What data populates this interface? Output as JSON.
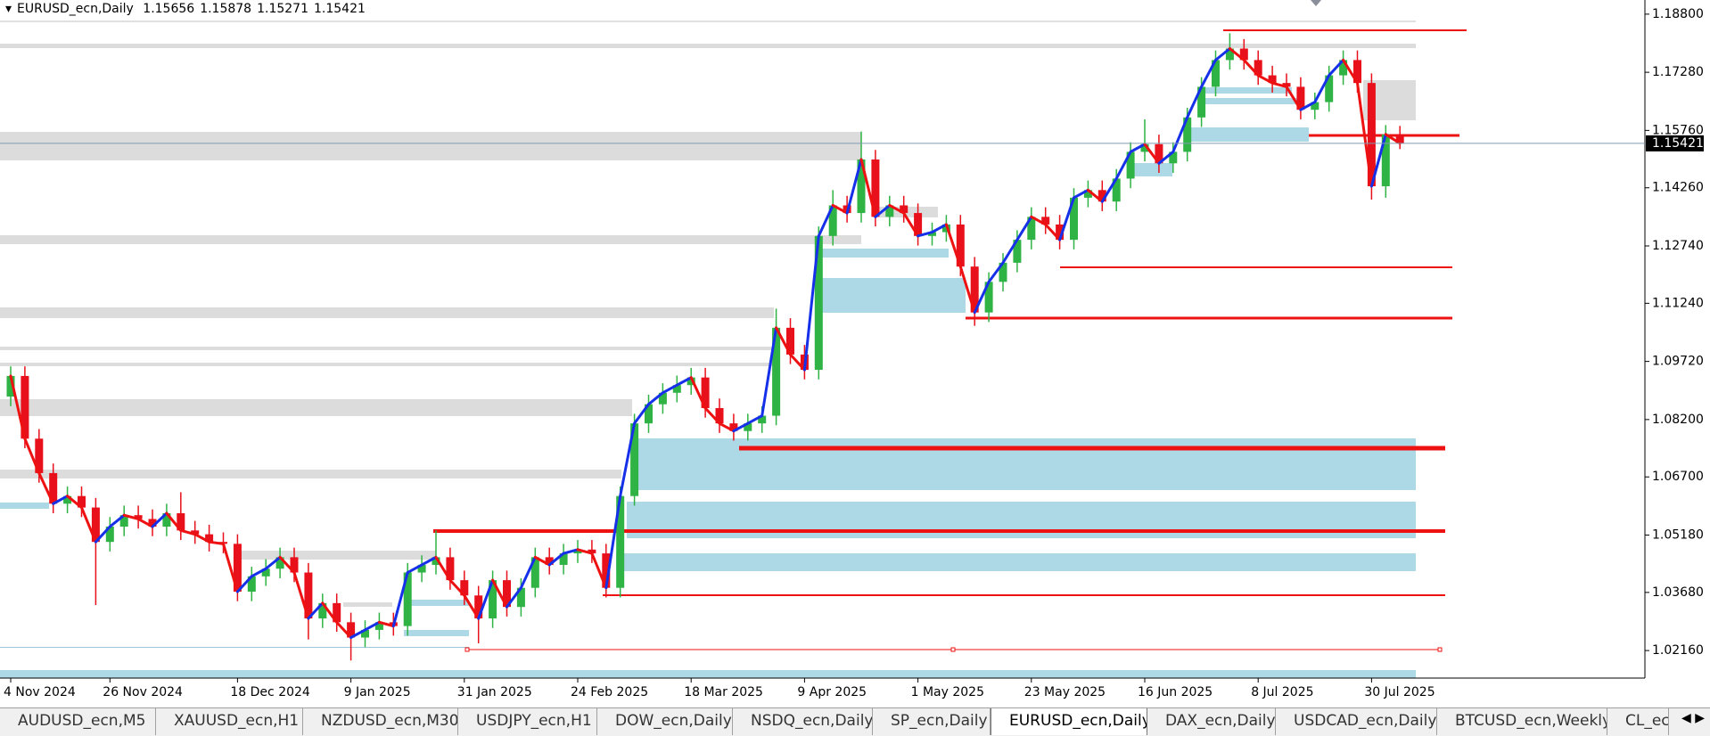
{
  "symbol": "EURUSD_ecn,Daily",
  "chart_data": {
    "type": "candlestick",
    "categories": [
      "4 Nov 2024",
      null,
      null,
      null,
      null,
      null,
      null,
      "26 Nov 2024",
      null,
      null,
      null,
      null,
      null,
      null,
      null,
      null,
      "18 Dec 2024",
      null,
      null,
      null,
      null,
      null,
      null,
      null,
      "9 Jan 2025",
      null,
      null,
      null,
      null,
      null,
      null,
      null,
      "31 Jan 2025",
      null,
      null,
      null,
      null,
      null,
      null,
      null,
      "24 Feb 2025",
      null,
      null,
      null,
      null,
      null,
      null,
      null,
      "18 Mar 2025",
      null,
      null,
      null,
      null,
      null,
      null,
      null,
      "9 Apr 2025",
      null,
      null,
      null,
      null,
      null,
      null,
      null,
      "1 May 2025",
      null,
      null,
      null,
      null,
      null,
      null,
      null,
      "23 May 2025",
      null,
      null,
      null,
      null,
      null,
      null,
      null,
      "16 Jun 2025",
      null,
      null,
      null,
      null,
      null,
      null,
      null,
      "8 Jul 2025",
      null,
      null,
      null,
      null,
      null,
      null,
      null,
      "30 Jul 2025",
      null,
      null
    ],
    "open": [
      1.088,
      1.0934,
      1.077,
      1.068,
      1.06,
      1.062,
      1.059,
      1.05,
      1.054,
      1.057,
      1.056,
      1.054,
      1.0575,
      1.053,
      1.052,
      1.05,
      1.0495,
      1.037,
      1.041,
      1.043,
      1.046,
      1.042,
      1.03,
      1.034,
      1.029,
      1.025,
      1.027,
      1.029,
      1.028,
      1.042,
      1.044,
      1.046,
      1.04,
      1.036,
      1.03,
      1.04,
      1.033,
      1.038,
      1.046,
      1.044,
      1.047,
      1.048,
      1.047,
      1.038,
      1.062,
      1.081,
      1.086,
      1.089,
      1.091,
      1.093,
      1.085,
      1.081,
      1.079,
      1.081,
      1.083,
      1.106,
      1.099,
      1.095,
      1.13,
      1.138,
      1.136,
      1.15,
      1.135,
      1.138,
      1.136,
      1.13,
      1.131,
      1.133,
      1.122,
      1.11,
      1.118,
      1.123,
      1.129,
      1.135,
      1.133,
      1.129,
      1.14,
      1.142,
      1.139,
      1.145,
      1.152,
      1.154,
      1.149,
      1.152,
      1.161,
      1.169,
      1.176,
      1.179,
      1.176,
      1.172,
      1.17,
      1.169,
      1.163,
      1.165,
      1.172,
      1.176,
      1.17,
      1.143,
      1.15656
    ],
    "high": [
      1.0959,
      1.0959,
      1.0795,
      1.0705,
      1.0645,
      1.0645,
      1.0615,
      1.0565,
      1.0595,
      1.0595,
      1.0585,
      1.06,
      1.063,
      1.0555,
      1.0545,
      1.0525,
      1.052,
      1.0435,
      1.0455,
      1.0485,
      1.0485,
      1.0445,
      1.0365,
      1.0365,
      1.0315,
      1.0295,
      1.0315,
      1.0315,
      1.0445,
      1.0465,
      1.053,
      1.0485,
      1.0425,
      1.0385,
      1.0425,
      1.0425,
      1.0405,
      1.0485,
      1.0485,
      1.0495,
      1.0505,
      1.0505,
      1.0495,
      1.0645,
      1.0835,
      1.0885,
      1.0915,
      1.0935,
      1.0955,
      1.0955,
      1.0875,
      1.0835,
      1.0835,
      1.0855,
      1.111,
      1.1085,
      1.1015,
      1.1325,
      1.142,
      1.1405,
      1.1573,
      1.1525,
      1.1405,
      1.1405,
      1.1385,
      1.1335,
      1.1355,
      1.1355,
      1.1245,
      1.1205,
      1.1255,
      1.1315,
      1.1375,
      1.1375,
      1.1355,
      1.1425,
      1.1445,
      1.1445,
      1.1475,
      1.1545,
      1.1605,
      1.1565,
      1.1545,
      1.1635,
      1.1715,
      1.1785,
      1.183,
      1.1815,
      1.1785,
      1.1745,
      1.1725,
      1.1715,
      1.1675,
      1.1745,
      1.1785,
      1.1785,
      1.1725,
      1.159,
      1.15878
    ],
    "low": [
      1.0855,
      1.0745,
      1.0655,
      1.0575,
      1.0575,
      1.0565,
      1.0335,
      1.0475,
      1.0515,
      1.0535,
      1.0515,
      1.0515,
      1.0505,
      1.0495,
      1.0475,
      1.047,
      1.0345,
      1.0345,
      1.0385,
      1.0405,
      1.0395,
      1.0245,
      1.0275,
      1.0265,
      1.019,
      1.0225,
      1.0245,
      1.0255,
      1.0255,
      1.0395,
      1.0415,
      1.0375,
      1.0335,
      1.0235,
      1.0275,
      1.0305,
      1.0305,
      1.0355,
      1.0415,
      1.0415,
      1.0445,
      1.0445,
      1.0355,
      1.0355,
      1.0595,
      1.0785,
      1.0835,
      1.0865,
      1.0885,
      1.0825,
      1.0785,
      1.0765,
      1.0765,
      1.0785,
      1.0805,
      1.0965,
      1.0925,
      1.0925,
      1.1275,
      1.1335,
      1.1335,
      1.1325,
      1.1325,
      1.1335,
      1.1275,
      1.1275,
      1.1285,
      1.1195,
      1.1065,
      1.1075,
      1.1155,
      1.1205,
      1.1265,
      1.1305,
      1.1265,
      1.1265,
      1.1375,
      1.1365,
      1.1365,
      1.1425,
      1.1495,
      1.1465,
      1.1465,
      1.1495,
      1.1585,
      1.1665,
      1.1735,
      1.1735,
      1.1695,
      1.1675,
      1.1665,
      1.1605,
      1.1605,
      1.1625,
      1.1695,
      1.1675,
      1.1395,
      1.14,
      1.15271
    ],
    "close": [
      1.0934,
      1.077,
      1.068,
      1.06,
      1.062,
      1.059,
      1.05,
      1.054,
      1.057,
      1.056,
      1.054,
      1.0575,
      1.053,
      1.052,
      1.05,
      1.0495,
      1.037,
      1.041,
      1.043,
      1.046,
      1.042,
      1.03,
      1.034,
      1.029,
      1.025,
      1.027,
      1.029,
      1.028,
      1.042,
      1.044,
      1.046,
      1.04,
      1.036,
      1.03,
      1.04,
      1.033,
      1.038,
      1.046,
      1.044,
      1.047,
      1.048,
      1.047,
      1.038,
      1.062,
      1.081,
      1.086,
      1.089,
      1.091,
      1.093,
      1.085,
      1.081,
      1.079,
      1.081,
      1.083,
      1.106,
      1.099,
      1.095,
      1.13,
      1.138,
      1.136,
      1.15,
      1.135,
      1.138,
      1.136,
      1.13,
      1.131,
      1.133,
      1.122,
      1.11,
      1.118,
      1.123,
      1.129,
      1.135,
      1.133,
      1.129,
      1.14,
      1.142,
      1.139,
      1.145,
      1.152,
      1.154,
      1.149,
      1.152,
      1.161,
      1.169,
      1.176,
      1.179,
      1.176,
      1.172,
      1.17,
      1.169,
      1.163,
      1.165,
      1.172,
      1.176,
      1.17,
      1.143,
      1.15656,
      1.15421
    ],
    "up_color": "#2fb344",
    "down_color": "#e8101a",
    "trend_up_color": "#1530e8",
    "trend_down_color": "#ee1111",
    "ylim": [
      1.0144,
      1.1917
    ],
    "yticks": [
      {
        "value": 1.188,
        "label": "1.18800"
      },
      {
        "value": 1.1728,
        "label": "1.17280"
      },
      {
        "value": 1.1576,
        "label": "1.15760"
      },
      {
        "value": 1.1426,
        "label": "1.14260"
      },
      {
        "value": 1.1274,
        "label": "1.12740"
      },
      {
        "value": 1.1124,
        "label": "1.11240"
      },
      {
        "value": 1.0972,
        "label": "1.09720"
      },
      {
        "value": 1.082,
        "label": "1.08200"
      },
      {
        "value": 1.067,
        "label": "1.06700"
      },
      {
        "value": 1.0518,
        "label": "1.05180"
      },
      {
        "value": 1.0368,
        "label": "1.03680"
      },
      {
        "value": 1.0216,
        "label": "1.02160"
      }
    ],
    "grid": false
  },
  "tabs": [
    "AUDUSD_ecn,M5",
    "XAUUSD_ecn,H1",
    "NZDUSD_ecn,M30",
    "USDJPY_ecn,H1",
    "DOW_ecn,Daily",
    "NSDQ_ecn,Daily",
    "SP_ecn,Daily",
    "EURUSD_ecn,Daily",
    "DAX_ecn,Daily",
    "USDCAD_ecn,Daily",
    "BTCUSD_ecn,Weekly",
    "CL_ec"
  ]
}
